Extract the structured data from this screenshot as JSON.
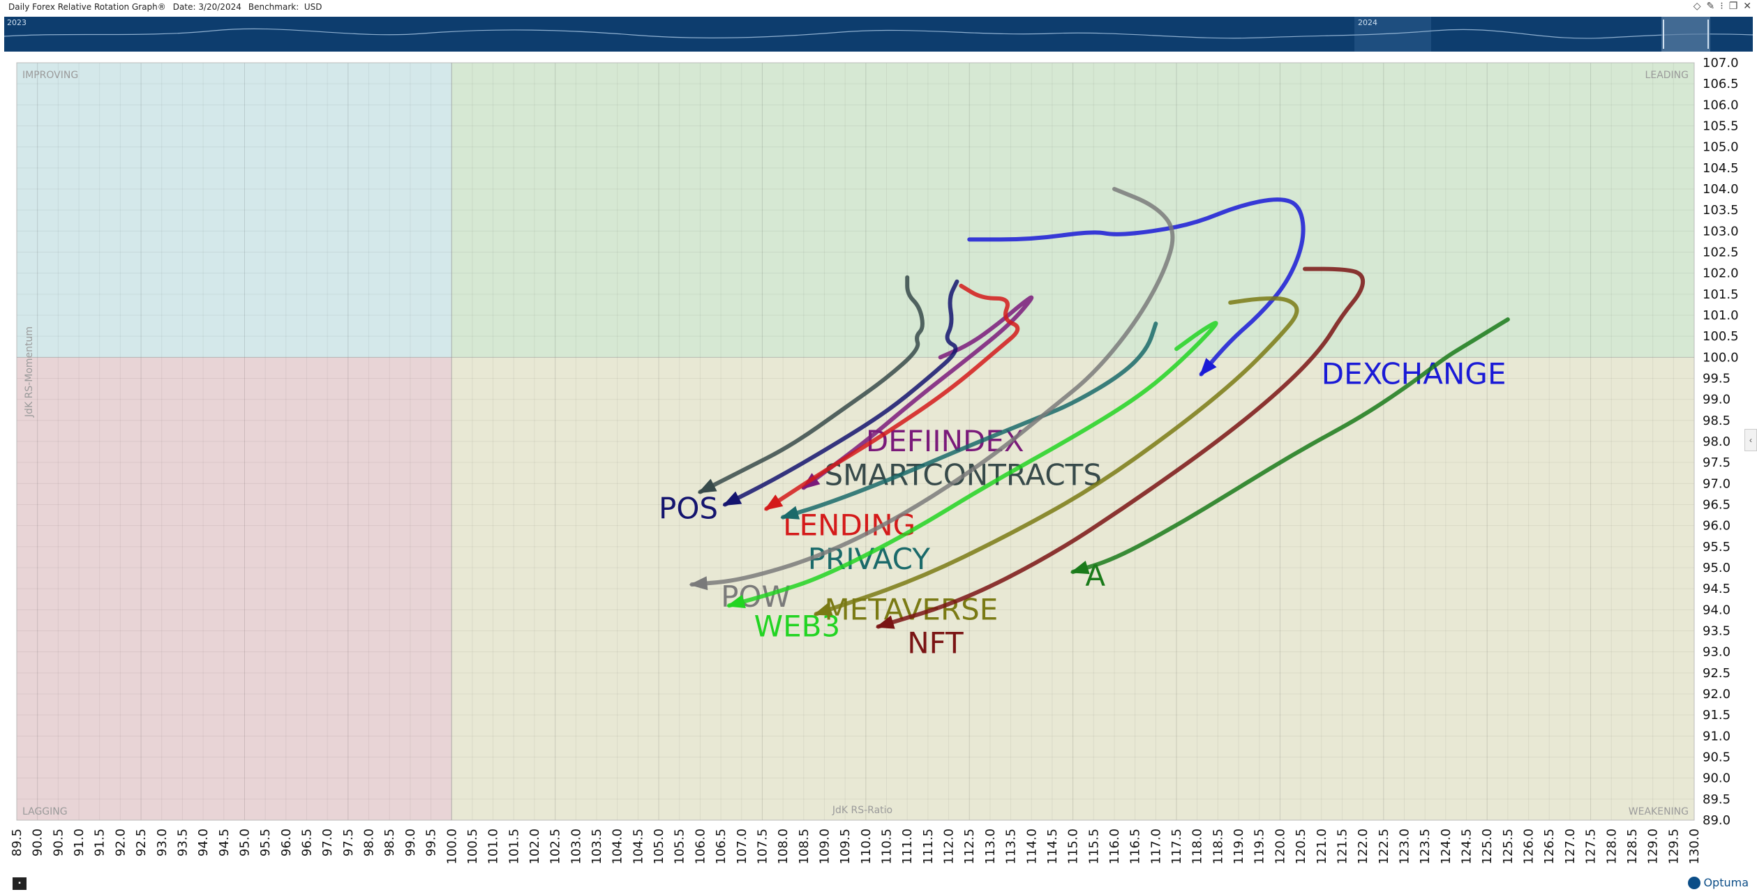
{
  "titlebar": {
    "title": "Daily Forex Relative Rotation Graph®",
    "date": "Date: 3/20/2024",
    "benchmark": "Benchmark:  USD"
  },
  "timeline": {
    "year_left": "2023",
    "year_right": "2024"
  },
  "logo": {
    "text": "Optuma"
  },
  "chart_data": {
    "type": "scatter",
    "title": "",
    "xlabel": "JdK RS-Ratio",
    "ylabel": "JdK RS-Momentum",
    "xlim": [
      89.5,
      130.0
    ],
    "ylim": [
      89.0,
      107.0
    ],
    "center": [
      100,
      100
    ],
    "quadrants": [
      "IMPROVING",
      "LEADING",
      "LAGGING",
      "WEAKENING"
    ],
    "quadrant_colors": {
      "improving": "#d4e8ea",
      "leading": "#d6e8d3",
      "lagging": "#e8d4d6",
      "weakening": "#e8e8d4"
    },
    "grid": true,
    "x_ticks": [
      "89.5",
      "90.0",
      "90.5",
      "91.0",
      "91.5",
      "92.0",
      "92.5",
      "93.0",
      "93.5",
      "94.0",
      "94.5",
      "95.0",
      "95.5",
      "96.0",
      "96.5",
      "97.0",
      "97.5",
      "98.0",
      "98.5",
      "99.0",
      "99.5",
      "100.0",
      "100.5",
      "101.0",
      "101.5",
      "102.0",
      "102.5",
      "103.0",
      "103.5",
      "104.0",
      "104.5",
      "105.0",
      "105.5",
      "106.0",
      "106.5",
      "107.0",
      "107.5",
      "108.0",
      "108.5",
      "109.0",
      "109.5",
      "110.0",
      "110.5",
      "111.0",
      "111.5",
      "112.0",
      "112.5",
      "113.0",
      "113.5",
      "114.0",
      "114.5",
      "115.0",
      "115.5",
      "116.0",
      "116.5",
      "117.0",
      "117.5",
      "118.0",
      "118.5",
      "119.0",
      "119.5",
      "120.0",
      "120.5",
      "121.0",
      "121.5",
      "122.0",
      "122.5",
      "123.0",
      "123.5",
      "124.0",
      "124.5",
      "125.0",
      "125.5",
      "126.0",
      "126.5",
      "127.0",
      "127.5",
      "128.0",
      "128.5",
      "129.0",
      "129.5",
      "130.0"
    ],
    "y_ticks": [
      "107.0",
      "106.5",
      "106.0",
      "105.5",
      "105.0",
      "104.5",
      "104.0",
      "103.5",
      "103.0",
      "102.5",
      "102.0",
      "101.5",
      "101.0",
      "100.5",
      "100.0",
      "99.5",
      "99.0",
      "98.5",
      "98.0",
      "97.5",
      "97.0",
      "96.5",
      "96.0",
      "95.5",
      "95.0",
      "94.5",
      "94.0",
      "93.5",
      "93.0",
      "92.5",
      "92.0",
      "91.5",
      "91.0",
      "90.5",
      "90.0",
      "89.5",
      "89.0"
    ],
    "series": [
      {
        "name": "DEXCHANGE",
        "color": "#1a1ad6",
        "label_at": [
          121.0,
          99.6
        ],
        "points": [
          [
            112.5,
            102.8
          ],
          [
            114,
            102.8
          ],
          [
            115.5,
            103.0
          ],
          [
            116,
            102.9
          ],
          [
            117,
            103.0
          ],
          [
            118,
            103.2
          ],
          [
            119,
            103.6
          ],
          [
            120,
            103.8
          ],
          [
            120.5,
            103.6
          ],
          [
            120.6,
            102.8
          ],
          [
            120.2,
            101.8
          ],
          [
            119.5,
            101.0
          ],
          [
            118.8,
            100.4
          ],
          [
            118.1,
            99.6
          ]
        ]
      },
      {
        "name": "DEFIINDEX",
        "color": "#7a1a7a",
        "label_at": [
          110.0,
          98.0
        ],
        "points": [
          [
            111.8,
            100.0
          ],
          [
            112.5,
            100.3
          ],
          [
            113.2,
            100.8
          ],
          [
            113.8,
            101.3
          ],
          [
            114.1,
            101.5
          ],
          [
            113.5,
            100.8
          ],
          [
            112.5,
            100.0
          ],
          [
            111.2,
            99.0
          ],
          [
            110.0,
            98.0
          ],
          [
            108.5,
            96.9
          ]
        ]
      },
      {
        "name": "SMARTCONTRACTS",
        "color": "#374a4a",
        "label_at": [
          109.0,
          97.2
        ],
        "points": [
          [
            111.0,
            101.9
          ],
          [
            111.0,
            101.5
          ],
          [
            111.3,
            101.2
          ],
          [
            111.4,
            100.7
          ],
          [
            111.2,
            100.5
          ],
          [
            111.3,
            100.2
          ],
          [
            110.5,
            99.5
          ],
          [
            109.5,
            98.8
          ],
          [
            108.2,
            97.9
          ],
          [
            107.0,
            97.3
          ],
          [
            106.0,
            96.8
          ]
        ]
      },
      {
        "name": "POS",
        "color": "#14146e",
        "label_at": [
          105.0,
          96.4
        ],
        "points": [
          [
            112.2,
            101.8
          ],
          [
            112.0,
            101.4
          ],
          [
            112.1,
            100.8
          ],
          [
            111.9,
            100.4
          ],
          [
            112.3,
            100.2
          ],
          [
            111.5,
            99.5
          ],
          [
            110.5,
            98.7
          ],
          [
            109.2,
            97.9
          ],
          [
            107.8,
            97.1
          ],
          [
            106.6,
            96.5
          ]
        ]
      },
      {
        "name": "LENDING",
        "color": "#d41a1a",
        "label_at": [
          108.0,
          96.0
        ],
        "points": [
          [
            112.3,
            101.7
          ],
          [
            112.8,
            101.4
          ],
          [
            113.5,
            101.4
          ],
          [
            113.3,
            100.9
          ],
          [
            113.8,
            100.7
          ],
          [
            113.2,
            100.2
          ],
          [
            112.0,
            99.2
          ],
          [
            110.5,
            98.2
          ],
          [
            109.0,
            97.3
          ],
          [
            107.6,
            96.4
          ]
        ]
      },
      {
        "name": "PRIVACY",
        "color": "#1a6a6a",
        "label_at": [
          108.6,
          95.2
        ],
        "points": [
          [
            117.0,
            100.8
          ],
          [
            116.8,
            100.2
          ],
          [
            116.2,
            99.6
          ],
          [
            115.0,
            98.9
          ],
          [
            114.0,
            98.5
          ],
          [
            112.5,
            97.9
          ],
          [
            110.6,
            97.1
          ],
          [
            109.0,
            96.5
          ],
          [
            108.0,
            96.2
          ]
        ]
      },
      {
        "name": "POW",
        "color": "#7a7a7a",
        "label_at": [
          106.5,
          94.3
        ],
        "points": [
          [
            116.0,
            104.0
          ],
          [
            117.0,
            103.6
          ],
          [
            117.5,
            103.0
          ],
          [
            117.2,
            102.0
          ],
          [
            116.5,
            100.8
          ],
          [
            115.5,
            99.6
          ],
          [
            114.5,
            98.8
          ],
          [
            113.0,
            97.6
          ],
          [
            111.0,
            96.3
          ],
          [
            109.0,
            95.3
          ],
          [
            107.0,
            94.7
          ],
          [
            105.8,
            94.6
          ]
        ]
      },
      {
        "name": "WEB3",
        "color": "#22d422",
        "label_at": [
          107.3,
          93.6
        ],
        "points": [
          [
            117.5,
            100.2
          ],
          [
            118.2,
            100.7
          ],
          [
            118.6,
            100.9
          ],
          [
            117.5,
            99.8
          ],
          [
            116.5,
            99.0
          ],
          [
            115.0,
            98.1
          ],
          [
            113.0,
            97.0
          ],
          [
            111.0,
            95.8
          ],
          [
            109.0,
            94.8
          ],
          [
            107.8,
            94.4
          ],
          [
            106.7,
            94.1
          ]
        ]
      },
      {
        "name": "METAVERSE",
        "color": "#7a7a14",
        "label_at": [
          109.0,
          94.0
        ],
        "points": [
          [
            118.8,
            101.3
          ],
          [
            119.5,
            101.4
          ],
          [
            120.2,
            101.4
          ],
          [
            120.5,
            101.1
          ],
          [
            120.0,
            100.5
          ],
          [
            119.0,
            99.5
          ],
          [
            117.5,
            98.3
          ],
          [
            115.5,
            96.9
          ],
          [
            113.5,
            95.8
          ],
          [
            111.2,
            94.7
          ],
          [
            108.8,
            93.9
          ]
        ]
      },
      {
        "name": "NFT",
        "color": "#7a1414",
        "label_at": [
          111.0,
          93.2
        ],
        "points": [
          [
            120.6,
            102.1
          ],
          [
            121.5,
            102.1
          ],
          [
            122.0,
            102.0
          ],
          [
            122.0,
            101.6
          ],
          [
            121.5,
            101.0
          ],
          [
            121.0,
            100.2
          ],
          [
            120.0,
            99.2
          ],
          [
            118.5,
            98.0
          ],
          [
            116.5,
            96.6
          ],
          [
            114.5,
            95.3
          ],
          [
            112.3,
            94.2
          ],
          [
            110.3,
            93.6
          ]
        ]
      },
      {
        "name": "A",
        "color": "#1a7a1a",
        "label_at": [
          115.3,
          94.8
        ],
        "points": [
          [
            125.5,
            100.9
          ],
          [
            125.0,
            100.6
          ],
          [
            124.5,
            100.3
          ],
          [
            124.0,
            100.0
          ],
          [
            123.2,
            99.4
          ],
          [
            122.0,
            98.6
          ],
          [
            120.5,
            97.8
          ],
          [
            119.0,
            96.9
          ],
          [
            117.5,
            96.0
          ],
          [
            116.0,
            95.2
          ],
          [
            115.0,
            94.9
          ]
        ]
      }
    ]
  }
}
